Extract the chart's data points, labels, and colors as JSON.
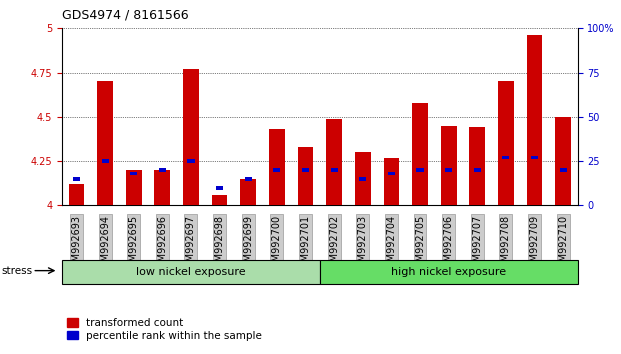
{
  "title": "GDS4974 / 8161566",
  "samples": [
    "GSM992693",
    "GSM992694",
    "GSM992695",
    "GSM992696",
    "GSM992697",
    "GSM992698",
    "GSM992699",
    "GSM992700",
    "GSM992701",
    "GSM992702",
    "GSM992703",
    "GSM992704",
    "GSM992705",
    "GSM992706",
    "GSM992707",
    "GSM992708",
    "GSM992709",
    "GSM992710"
  ],
  "red_values": [
    4.12,
    4.7,
    4.2,
    4.2,
    4.77,
    4.06,
    4.15,
    4.43,
    4.33,
    4.49,
    4.3,
    4.27,
    4.58,
    4.45,
    4.44,
    4.7,
    4.96,
    4.5
  ],
  "blue_pct": [
    15,
    25,
    18,
    20,
    25,
    10,
    15,
    20,
    20,
    20,
    15,
    18,
    20,
    20,
    20,
    27,
    27,
    20
  ],
  "red_color": "#cc0000",
  "blue_color": "#0000cc",
  "bar_width": 0.55,
  "y_min": 4.0,
  "y_max": 5.0,
  "y_ticks": [
    4.0,
    4.25,
    4.5,
    4.75,
    5.0
  ],
  "y_tick_labels": [
    "4",
    "4.25",
    "4.5",
    "4.75",
    "5"
  ],
  "right_y_ticks": [
    0,
    25,
    50,
    75,
    100
  ],
  "right_y_tick_labels": [
    "0",
    "25",
    "50",
    "75",
    "100%"
  ],
  "low_nickel_count": 9,
  "group_labels": [
    "low nickel exposure",
    "high nickel exposure"
  ],
  "low_color": "#aaddaa",
  "high_color": "#66dd66",
  "stress_label": "stress",
  "legend_items": [
    "transformed count",
    "percentile rank within the sample"
  ],
  "bg_color": "#ffffff",
  "red_axis_color": "#cc0000",
  "blue_axis_color": "#0000cc",
  "title_fontsize": 9,
  "tick_fontsize": 7,
  "group_fontsize": 8,
  "legend_fontsize": 7.5
}
